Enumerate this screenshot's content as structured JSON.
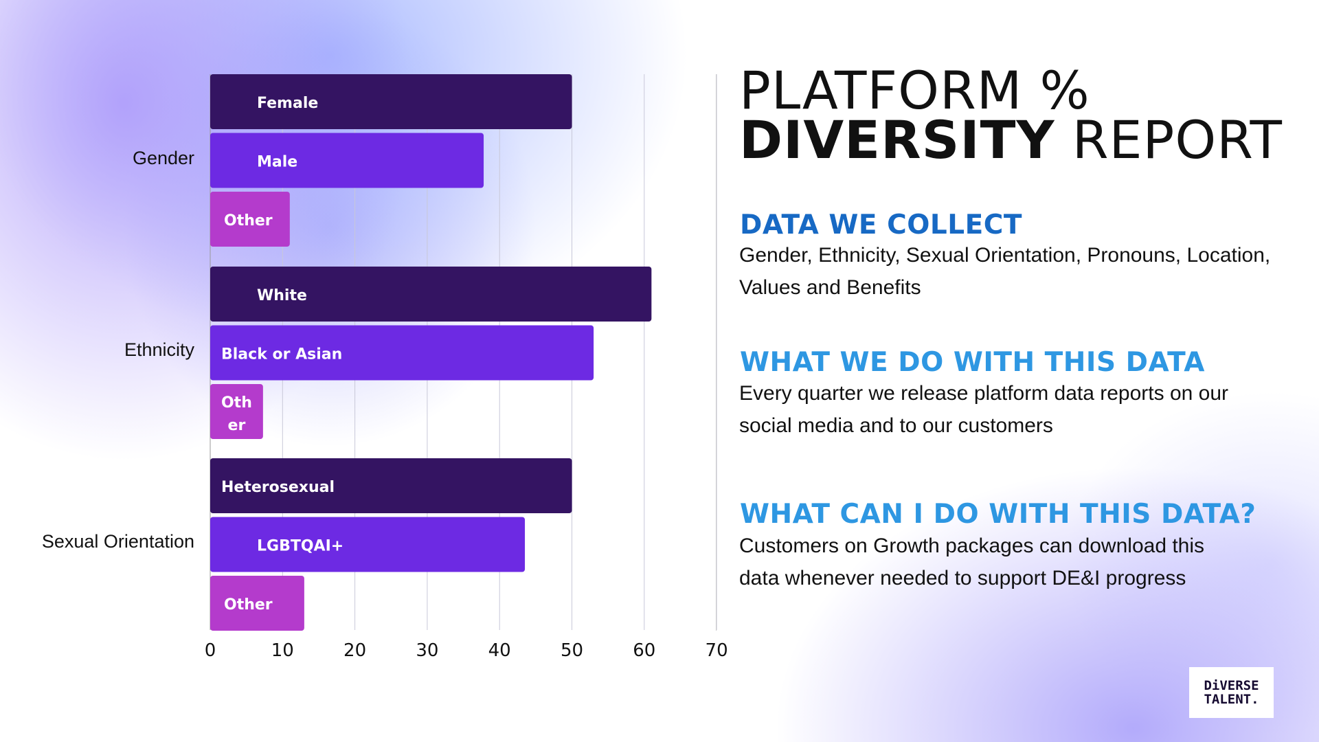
{
  "title": {
    "line1": "PLATFORM %",
    "line2_bold": "DIVERSITY",
    "line2_rest": "REPORT"
  },
  "sections": [
    {
      "heading": "DATA WE COLLECT",
      "body": "Gender, Ethnicity, Sexual Orientation, Pronouns, Location, Values and Benefits",
      "color": "#1769c4"
    },
    {
      "heading": "WHAT WE DO WITH THIS DATA",
      "body": "Every quarter we release platform data reports on our social media and to our customers",
      "color": "#2e97e2"
    },
    {
      "heading": "WHAT CAN I DO WITH THIS DATA?",
      "body": "Customers on Growth packages can download this data whenever needed to support DE&I progress",
      "color": "#2e97e2"
    }
  ],
  "logo": {
    "line1": "DiVERSE",
    "line2": "TALENT."
  },
  "chart_data": {
    "type": "bar",
    "orientation": "horizontal",
    "xlim": [
      0,
      70
    ],
    "ticks": [
      0,
      10,
      20,
      30,
      40,
      50,
      60,
      70
    ],
    "grid": true,
    "groups": [
      {
        "name": "Gender",
        "bars": [
          {
            "label": "Female",
            "value": 50
          },
          {
            "label": "Male",
            "value": 37.8
          },
          {
            "label": "Other",
            "value": 11
          }
        ]
      },
      {
        "name": "Ethnicity",
        "bars": [
          {
            "label": "White",
            "value": 61
          },
          {
            "label": "Black or Asian",
            "value": 53
          },
          {
            "label": "Oth er",
            "value": 7.3
          }
        ]
      },
      {
        "name": "Sexual Orientation",
        "bars": [
          {
            "label": "Heterosexual",
            "value": 50
          },
          {
            "label": "LGBTQAI+",
            "value": 43.5
          },
          {
            "label": "Other",
            "value": 13
          }
        ]
      }
    ],
    "colors": [
      "#341462",
      "#6d2ae3",
      "#b43bcc"
    ]
  }
}
